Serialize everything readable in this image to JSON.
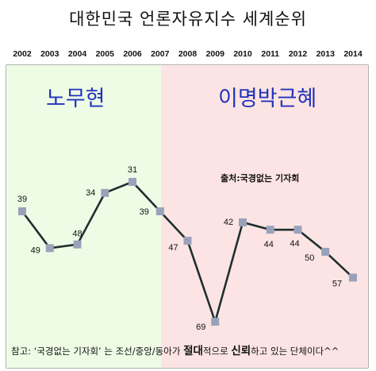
{
  "title": "대한민국 언론자유지수 세계순위",
  "eras": [
    {
      "label": "노무현",
      "from": 2002,
      "to": 2007,
      "color": "#eefce6"
    },
    {
      "label": "이명박근혜",
      "from": 2007,
      "to": 2014,
      "color": "#fde4e4"
    }
  ],
  "source_text": "출처:국경없는 기자회",
  "note": {
    "prefix": "참고: ‘국경없는 기자회’ 는 조선/중앙/동아가 ",
    "word1": "절대",
    "mid": "적으로 ",
    "word2": "신뢰",
    "suffix": "하고 있는 단체이다^^"
  },
  "chart_data": {
    "type": "line",
    "title": "대한민국 언론자유지수 세계순위",
    "x": [
      "2002",
      "2003",
      "2004",
      "2005",
      "2006",
      "2007",
      "2008",
      "2009",
      "2010",
      "2011",
      "2012",
      "2013",
      "2014"
    ],
    "values": [
      39,
      49,
      48,
      34,
      31,
      39,
      47,
      69,
      42,
      44,
      44,
      50,
      57
    ],
    "y_inverted": true,
    "colors": {
      "line": "#1f2f2f",
      "marker": "#9aa2bb"
    }
  }
}
